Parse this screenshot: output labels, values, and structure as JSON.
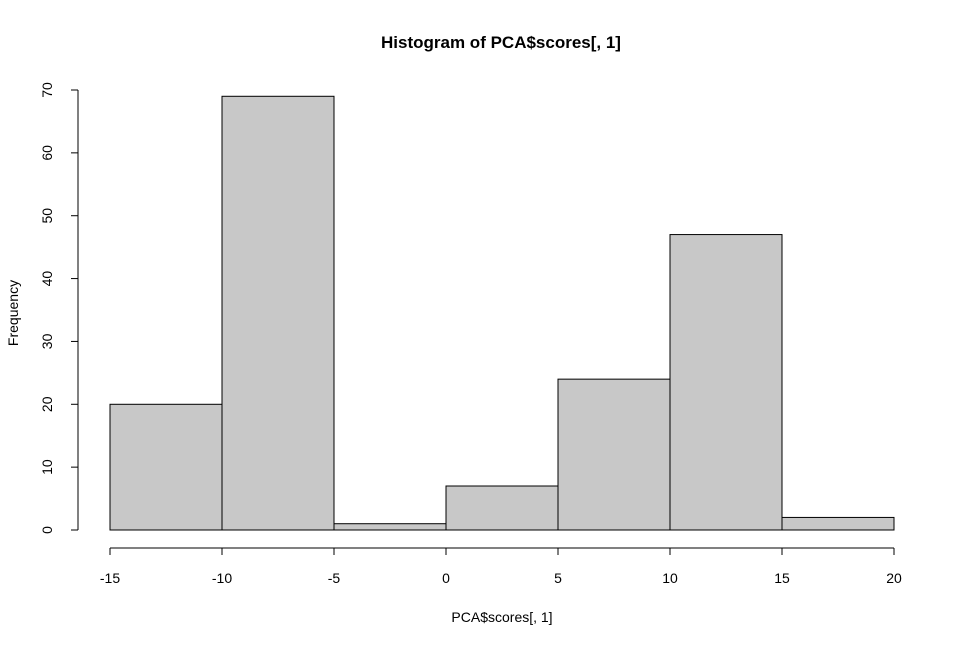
{
  "chart_data": {
    "type": "bar",
    "title": "Histogram of PCA$scores[, 1]",
    "xlabel": "PCA$scores[, 1]",
    "ylabel": "Frequency",
    "bins": [
      {
        "from": -15,
        "to": -10,
        "count": 20
      },
      {
        "from": -10,
        "to": -5,
        "count": 69
      },
      {
        "from": -5,
        "to": 0,
        "count": 1
      },
      {
        "from": 0,
        "to": 5,
        "count": 7
      },
      {
        "from": 5,
        "to": 10,
        "count": 24
      },
      {
        "from": 10,
        "to": 15,
        "count": 47
      },
      {
        "from": 15,
        "to": 20,
        "count": 2
      }
    ],
    "xlim": [
      -15,
      20
    ],
    "ylim": [
      0,
      70
    ],
    "x_ticks": [
      "-15",
      "-10",
      "-5",
      "0",
      "5",
      "10",
      "15",
      "20"
    ],
    "y_ticks": [
      "0",
      "10",
      "20",
      "30",
      "40",
      "50",
      "60",
      "70"
    ],
    "bar_fill": "#c8c8c8",
    "bar_stroke": "#000000",
    "grid": false,
    "legend": "none"
  }
}
